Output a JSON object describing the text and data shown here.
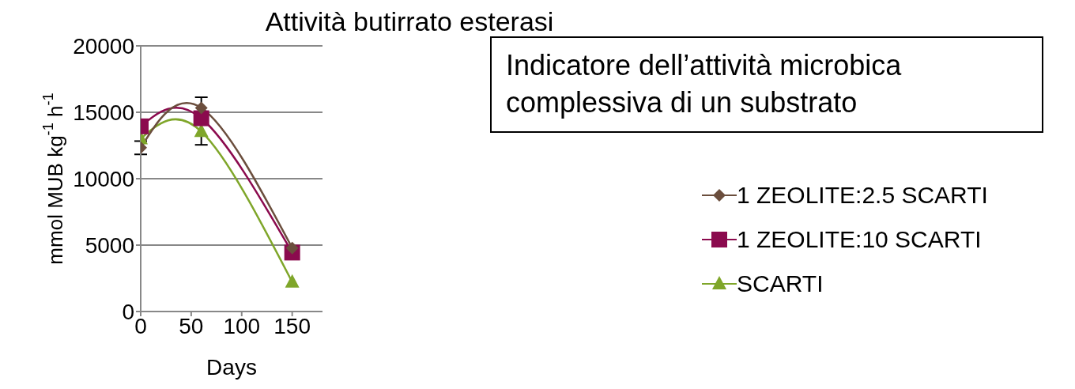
{
  "chart_data": {
    "type": "line",
    "title": "Attività butirrato esterasi",
    "xlabel": "Days",
    "ylabel": "mmol MUB kg$^{-1}$ h$^{-1}$",
    "x": [
      0,
      60,
      150
    ],
    "xlim": [
      0,
      180
    ],
    "xticks": [
      0,
      50,
      100,
      150
    ],
    "ylim": [
      0,
      20000
    ],
    "yticks": [
      0,
      5000,
      10000,
      15000,
      20000
    ],
    "grid": "y",
    "legend": "right",
    "series": [
      {
        "name": "1 ZEOLITE:2.5 SCARTI",
        "color": "#6b4e3d",
        "marker": "diamond",
        "values": [
          12330,
          15330,
          4780
        ],
        "errors": [
          500,
          800,
          null
        ]
      },
      {
        "name": "1 ZEOLITE:10 SCARTI",
        "color": "#8b0a4e",
        "marker": "square",
        "values": [
          13940,
          14550,
          4440
        ]
      },
      {
        "name": "SCARTI",
        "color": "#7fa62a",
        "marker": "triangle",
        "values": [
          13000,
          13550,
          2220
        ],
        "errors": [
          null,
          1000,
          null
        ]
      }
    ],
    "annotations": [
      "Indicatore dell’attività microbica complessiva di un substrato"
    ]
  }
}
